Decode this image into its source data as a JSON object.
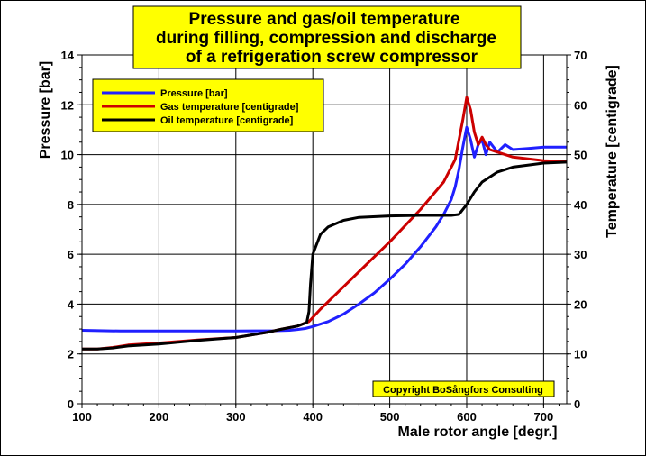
{
  "chart_data": {
    "type": "line",
    "title_lines": [
      "Pressure and gas/oil temperature",
      "during filling, compression and discharge",
      "of a refrigeration screw compressor"
    ],
    "xlabel": "Male rotor angle [degr.]",
    "ylabel_left": "Pressure [bar]",
    "ylabel_right": "Temperature [centigrade]",
    "xlim": [
      100,
      730
    ],
    "ylim_left": [
      0,
      14
    ],
    "ylim_right": [
      0,
      70
    ],
    "x_ticks": [
      100,
      200,
      300,
      400,
      500,
      600,
      700
    ],
    "y_ticks_left": [
      0,
      2,
      4,
      6,
      8,
      10,
      12,
      14
    ],
    "y_ticks_right": [
      0,
      10,
      20,
      30,
      40,
      50,
      60,
      70
    ],
    "grid": true,
    "legend_position": "top-left",
    "copyright": "Copyright BoSångfors Consulting",
    "colors": {
      "title_bg": "#ffff00",
      "legend_bg": "#ffff00",
      "copyright_bg": "#ffff00"
    },
    "series": [
      {
        "name": "Pressure [bar]",
        "axis": "left",
        "color": "#2020ff",
        "x": [
          100,
          150,
          200,
          250,
          300,
          350,
          370,
          380,
          390,
          400,
          420,
          440,
          460,
          480,
          500,
          520,
          540,
          560,
          570,
          580,
          585,
          590,
          595,
          600,
          605,
          610,
          615,
          620,
          625,
          630,
          640,
          650,
          660,
          680,
          700,
          730
        ],
        "y": [
          2.95,
          2.92,
          2.92,
          2.92,
          2.92,
          2.93,
          2.95,
          2.98,
          3.02,
          3.1,
          3.3,
          3.6,
          4.0,
          4.45,
          5.0,
          5.6,
          6.3,
          7.1,
          7.6,
          8.2,
          8.7,
          9.4,
          10.3,
          11.1,
          10.6,
          9.9,
          10.4,
          10.6,
          10.0,
          10.5,
          10.1,
          10.4,
          10.2,
          10.25,
          10.3,
          10.3
        ]
      },
      {
        "name": "Gas temperature [centigrade]",
        "axis": "right",
        "color": "#cc0000",
        "x": [
          100,
          120,
          140,
          160,
          200,
          250,
          300,
          340,
          360,
          380,
          395,
          410,
          430,
          460,
          500,
          540,
          570,
          585,
          595,
          600,
          605,
          610,
          615,
          620,
          625,
          630,
          640,
          650,
          660,
          700,
          730
        ],
        "y": [
          11.0,
          11.0,
          11.3,
          11.8,
          12.2,
          12.8,
          13.3,
          14.3,
          15.0,
          15.6,
          16.5,
          19.0,
          22.0,
          26.5,
          32.5,
          39.0,
          44.5,
          49.0,
          57.0,
          61.5,
          59.0,
          54.5,
          52.0,
          53.5,
          52.0,
          51.0,
          50.5,
          50.0,
          49.5,
          48.8,
          48.6
        ]
      },
      {
        "name": "Oil temperature [centigrade]",
        "axis": "right",
        "color": "#000000",
        "x": [
          100,
          120,
          140,
          160,
          200,
          250,
          300,
          340,
          360,
          380,
          392,
          395,
          397,
          400,
          410,
          420,
          440,
          460,
          500,
          540,
          580,
          590,
          600,
          610,
          620,
          640,
          660,
          700,
          730
        ],
        "y": [
          11.0,
          11.0,
          11.2,
          11.6,
          12.0,
          12.7,
          13.3,
          14.3,
          15.0,
          15.6,
          16.3,
          18.5,
          24.0,
          30.0,
          34.0,
          35.5,
          36.8,
          37.4,
          37.7,
          37.8,
          37.8,
          38.0,
          40.0,
          42.5,
          44.5,
          46.5,
          47.5,
          48.3,
          48.5
        ]
      }
    ]
  }
}
